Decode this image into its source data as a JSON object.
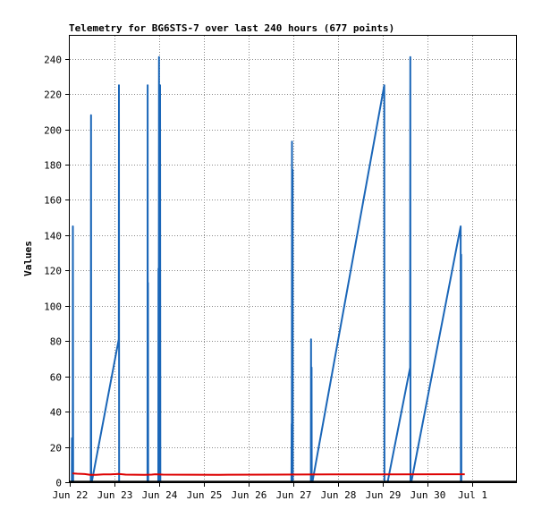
{
  "chart_data": {
    "type": "line",
    "title": "Telemetry for BG6STS-7 over last 240 hours (677 points)",
    "xlabel": "",
    "ylabel": "Values",
    "ylim": [
      0,
      253
    ],
    "yticks": [
      0,
      20,
      40,
      60,
      80,
      100,
      120,
      140,
      160,
      180,
      200,
      220,
      240
    ],
    "xlim": [
      0,
      240
    ],
    "xticks": [
      {
        "label": "Jun 22",
        "hour": 0
      },
      {
        "label": "Jun 23",
        "hour": 24
      },
      {
        "label": "Jun 24",
        "hour": 48
      },
      {
        "label": "Jun 25",
        "hour": 72
      },
      {
        "label": "Jun 26",
        "hour": 96
      },
      {
        "label": "Jun 27",
        "hour": 120
      },
      {
        "label": "Jun 28",
        "hour": 144
      },
      {
        "label": "Jun 29",
        "hour": 168
      },
      {
        "label": "Jun 30",
        "hour": 192
      },
      {
        "label": "Jul 1",
        "hour": 216
      }
    ],
    "grid": "dashed",
    "series": [
      {
        "color": "#1a66b8",
        "points": [
          [
            1.1,
            0
          ],
          [
            1.2,
            25
          ],
          [
            1.3,
            0
          ],
          [
            1.6,
            0
          ],
          [
            1.7,
            145
          ],
          [
            1.8,
            0
          ],
          [
            11.3,
            0
          ],
          [
            11.4,
            208
          ],
          [
            11.5,
            0
          ],
          [
            11.8,
            0
          ],
          [
            26.3,
            81
          ],
          [
            26.4,
            225
          ],
          [
            26.5,
            0
          ],
          [
            41.7,
            0
          ],
          [
            41.8,
            225
          ],
          [
            41.9,
            0
          ],
          [
            42.0,
            113
          ],
          [
            42.1,
            0
          ],
          [
            47.5,
            0
          ],
          [
            47.6,
            121
          ],
          [
            47.7,
            0
          ],
          [
            47.9,
            241
          ],
          [
            48.0,
            0
          ],
          [
            48.2,
            193
          ],
          [
            48.3,
            0
          ],
          [
            48.5,
            225
          ],
          [
            48.6,
            0
          ],
          [
            119.0,
            0
          ],
          [
            119.1,
            33
          ],
          [
            119.2,
            0
          ],
          [
            119.3,
            193
          ],
          [
            119.4,
            0
          ],
          [
            119.6,
            177
          ],
          [
            119.7,
            0
          ],
          [
            129.4,
            0
          ],
          [
            129.5,
            81
          ],
          [
            129.6,
            0
          ],
          [
            129.8,
            65
          ],
          [
            129.9,
            0
          ],
          [
            130.2,
            0
          ],
          [
            168.8,
            225
          ],
          [
            168.9,
            0
          ],
          [
            170.6,
            0
          ],
          [
            182.7,
            65
          ],
          [
            182.8,
            241
          ],
          [
            182.9,
            0
          ],
          [
            183.3,
            0
          ],
          [
            209.8,
            145
          ],
          [
            209.9,
            0
          ],
          [
            210.1,
            129
          ],
          [
            210.2,
            0
          ]
        ]
      },
      {
        "color": "#dd0000",
        "points": [
          [
            1.5,
            5
          ],
          [
            4,
            4.8
          ],
          [
            8,
            4.6
          ],
          [
            11,
            4.2
          ],
          [
            14,
            4.2
          ],
          [
            18,
            4.4
          ],
          [
            22,
            4.4
          ],
          [
            26,
            4.7
          ],
          [
            30,
            4.3
          ],
          [
            40,
            4.2
          ],
          [
            44,
            4.3
          ],
          [
            46,
            4.5
          ],
          [
            50,
            4.3
          ],
          [
            80,
            4.2
          ],
          [
            110,
            4.3
          ],
          [
            140,
            4.4
          ],
          [
            170,
            4.4
          ],
          [
            200,
            4.5
          ],
          [
            212,
            4.5
          ]
        ]
      },
      {
        "color": "#000000",
        "points": [
          [
            0,
            0.3
          ],
          [
            240,
            0.3
          ]
        ]
      }
    ]
  }
}
